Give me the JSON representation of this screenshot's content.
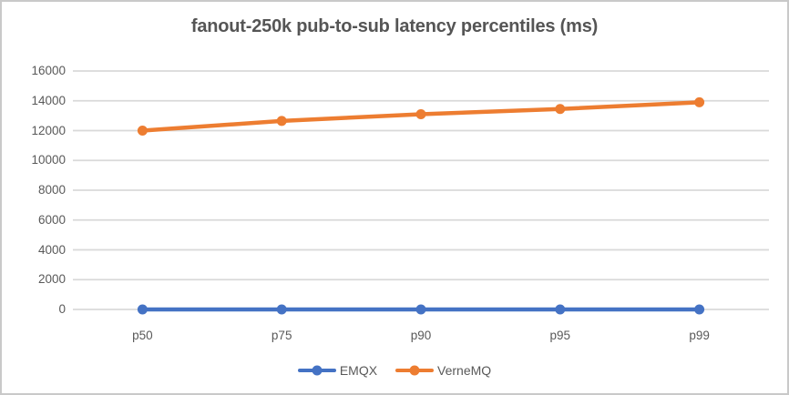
{
  "colors": {
    "emqx": "#4472C4",
    "vernemq": "#ED7D31",
    "gridline": "#D9D9D9",
    "axis_text": "#595959",
    "title_text": "#555555",
    "border": "#C9C9C9",
    "background": "#FFFFFF"
  },
  "chart_data": {
    "type": "line",
    "title": "fanout-250k pub-to-sub latency percentiles (ms)",
    "categories": [
      "p50",
      "p75",
      "p90",
      "p95",
      "p99"
    ],
    "series": [
      {
        "name": "EMQX",
        "color": "#4472C4",
        "values": [
          0,
          0,
          0,
          0,
          0
        ]
      },
      {
        "name": "VerneMQ",
        "color": "#ED7D31",
        "values": [
          12000,
          12650,
          13100,
          13450,
          13900
        ]
      }
    ],
    "xlabel": "",
    "ylabel": "",
    "ylim": [
      0,
      16000
    ],
    "yticks": [
      0,
      2000,
      4000,
      6000,
      8000,
      10000,
      12000,
      14000,
      16000
    ],
    "grid": "horizontal",
    "legend_position": "bottom",
    "marker": "circle"
  }
}
